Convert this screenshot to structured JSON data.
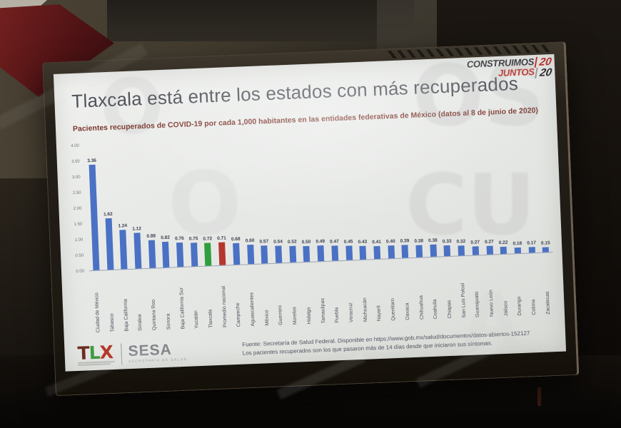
{
  "watermark": {
    "letters": [
      "OS",
      "CU",
      "A",
      "O",
      "O"
    ]
  },
  "brand": {
    "line1": "CONSTRUIMOS",
    "line2": "JUNTOS",
    "year_top": "20",
    "year_bottom": "20"
  },
  "slide": {
    "title": "Tlaxcala está entre los estados con más recuperados",
    "subtitle": "Pacientes recuperados de COVID-19 por cada 1,000 habitantes en las entidades federativas de México (datos al 8 de junio de 2020)"
  },
  "footer": {
    "tlx_t": "T",
    "tlx_l": "L",
    "tlx_x": "X",
    "sesa": "SESA",
    "sesa_sub": "SECRETARÍA DE SALUD",
    "source_line1": "Fuente: Secretaría de Salud Federal. Disponible en https://www.gob.mx/salud/documentos/datos-abiertos-152127",
    "source_line2": "Los pacientes recuperados son los que pasaron más de 14 días desde que iniciaron sus síntomas."
  },
  "chart_data": {
    "type": "bar",
    "title": "Pacientes recuperados de COVID-19 por cada 1,000 habitantes en las entidades federativas de México (datos al 8 de junio de 2020)",
    "xlabel": "",
    "ylabel": "",
    "ylim": [
      0,
      4.0
    ],
    "grid": false,
    "yticks": [
      "4.00",
      "3.50",
      "3.00",
      "2.50",
      "2.00",
      "1.50",
      "1.00",
      "0.50",
      "0.00"
    ],
    "categories": [
      "Ciudad de México",
      "Tabasco",
      "Baja California",
      "Sinaloa",
      "Quintana Roo",
      "Sonora",
      "Baja California Sur",
      "Yucatán",
      "Tlaxcala",
      "Promedio nacional",
      "Campeche",
      "Aguascalientes",
      "México",
      "Guerrero",
      "Morelos",
      "Hidalgo",
      "Tamaulipas",
      "Puebla",
      "Veracruz",
      "Michoacán",
      "Nayarit",
      "Querétaro",
      "Oaxaca",
      "Chihuahua",
      "Coahuila",
      "Chiapas",
      "San Luis Potosí",
      "Guanajuato",
      "Nuevo León",
      "Jalisco",
      "Durango",
      "Colima",
      "Zacatecas"
    ],
    "values": [
      3.36,
      1.62,
      1.24,
      1.12,
      0.88,
      0.82,
      0.76,
      0.75,
      0.72,
      0.71,
      0.68,
      0.6,
      0.57,
      0.54,
      0.52,
      0.5,
      0.49,
      0.47,
      0.45,
      0.43,
      0.41,
      0.4,
      0.39,
      0.38,
      0.38,
      0.33,
      0.32,
      0.27,
      0.27,
      0.22,
      0.18,
      0.17,
      0.15
    ],
    "colors": {
      "default": "#4a71c4",
      "highlight": "#2f9e3d",
      "average": "#b5362e"
    },
    "highlight_category": "Tlaxcala",
    "average_category": "Promedio nacional",
    "legend_position": "none"
  }
}
